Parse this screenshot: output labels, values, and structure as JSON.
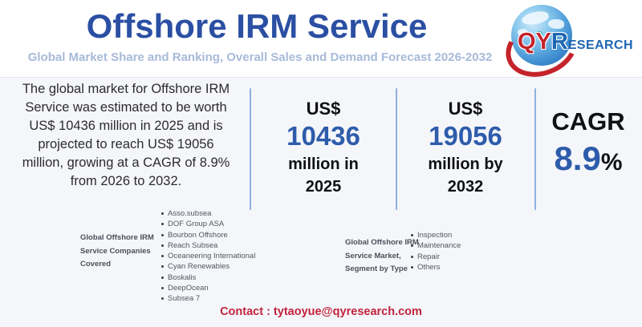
{
  "colors": {
    "brand_blue": "#2b4fa3",
    "accent_blue": "#2e5cab",
    "subtitle_blue": "#a7bad9",
    "divider_blue": "#8fafdf",
    "contact_red": "#c2233c",
    "logo_red": "#c4232b",
    "logo_blue": "#1f66b0",
    "background": "#f5f6fa"
  },
  "header": {
    "title": "Offshore IRM Service",
    "subtitle": "Global Market Share and Ranking, Overall Sales and Demand Forecast 2026-2032",
    "logo": {
      "qy": "QY",
      "r": "R",
      "esearch": "ESEARCH"
    }
  },
  "summary": {
    "text": "The global market for Offshore IRM\nService was estimated to be worth\nUS$ 10436 million in 2025 and is\nprojected to reach US$ 19056\nmillion, growing at a CAGR of 8.9%\nfrom 2026 to 2032."
  },
  "stats": [
    {
      "prefix": "US$",
      "value": "10436",
      "caption": "million in\n2025"
    },
    {
      "prefix": "US$",
      "value": "19056",
      "caption": "million by\n2032"
    }
  ],
  "cagr": {
    "label": "CAGR",
    "value": "8.9",
    "suffix": "%"
  },
  "sections": {
    "companies": {
      "label": "Global Offshore IRM\nService Companies\nCovered",
      "items": [
        "Asso.subsea",
        "DOF Group ASA",
        "Bourbon Offshore",
        "Reach Subsea",
        "Oceaneering International",
        "Cyan Renewables",
        "Boskalis",
        "DeepOcean",
        "Subsea 7"
      ]
    },
    "segments": {
      "label": "Global Offshore IRM\nService Market,\nSegment by Type",
      "items": [
        "Inspection",
        "Maintenance",
        "Repair",
        "Others"
      ]
    }
  },
  "footer": {
    "contact": "Contact : tytaoyue@qyresearch.com"
  }
}
